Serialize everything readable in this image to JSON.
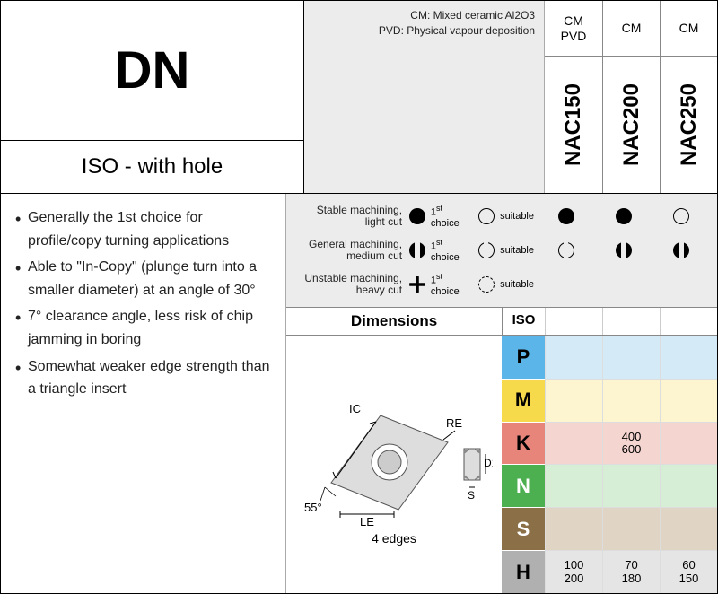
{
  "header": {
    "code": "DN",
    "subtitle": "ISO - with hole",
    "legend": [
      "CM: Mixed ceramic Al2O3",
      "PVD: Physical vapour deposition"
    ]
  },
  "grades": [
    {
      "top1": "CM",
      "top2": "PVD",
      "name": "NAC150"
    },
    {
      "top1": "CM",
      "top2": "",
      "name": "NAC200"
    },
    {
      "top1": "CM",
      "top2": "",
      "name": "NAC250"
    }
  ],
  "bullets": [
    "Generally the 1st choice for profile/copy turning applications",
    "Able to \"In-Copy\" (plunge turn into a smaller diameter) at an angle of 30°",
    "7° clearance angle, less risk of chip jamming in boring",
    "Somewhat weaker edge strength than a triangle insert"
  ],
  "choice_legend": {
    "rows": [
      {
        "l1": "Stable machining,",
        "l2": "light cut",
        "first": "ic-circle-f",
        "suitable": "ic-circle-o"
      },
      {
        "l1": "General machining,",
        "l2": "medium cut",
        "first": "ic-gear-f",
        "suitable": "ic-gear-o"
      },
      {
        "l1": "Unstable machining,",
        "l2": "heavy cut",
        "first": "ic-cross-f",
        "suitable": "ic-cross-o"
      }
    ],
    "first_label": "1",
    "first_suffix": " choice",
    "suitable_label": "suitable"
  },
  "choice_matrix": [
    [
      "ic-circle-f",
      "ic-circle-f",
      "ic-circle-o"
    ],
    [
      "ic-gear-o",
      "ic-gear-f",
      "ic-gear-f"
    ],
    [
      "",
      "",
      ""
    ]
  ],
  "dimensions_title": "Dimensions",
  "iso_title": "ISO",
  "diagram": {
    "labels": {
      "ic": "IC",
      "re": "RE",
      "le": "LE",
      "d1": "D1",
      "s": "S",
      "angle": "55°"
    },
    "edges": "4 edges"
  },
  "iso_rows": [
    "P",
    "M",
    "K",
    "N",
    "S",
    "H"
  ],
  "data": {
    "P": [
      "",
      "",
      ""
    ],
    "M": [
      "",
      "",
      ""
    ],
    "K": [
      "",
      "400\n600",
      ""
    ],
    "N": [
      "",
      "",
      ""
    ],
    "S": [
      "",
      "",
      ""
    ],
    "H": [
      "100\n200",
      "70\n180",
      "60\n150"
    ]
  }
}
